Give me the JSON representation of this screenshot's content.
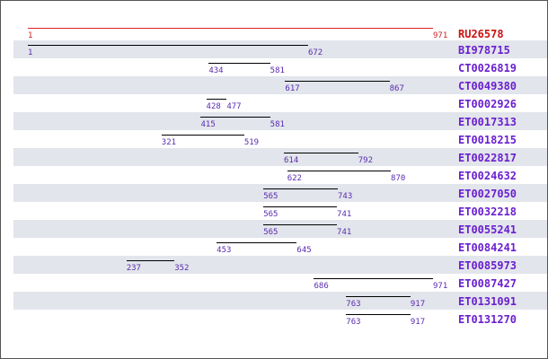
{
  "reference": {
    "id": "RU26578",
    "start": 1,
    "end": 971
  },
  "colors": {
    "reference": "#cc1111",
    "label": "#6a1fd0",
    "number": "#5a2bb0",
    "row_shade": "#e2e5eb",
    "bar": "#000000"
  },
  "alignments": [
    {
      "id": "BI978715",
      "start": 1,
      "end": 672
    },
    {
      "id": "CT0026819",
      "start": 434,
      "end": 581
    },
    {
      "id": "CT0049380",
      "start": 617,
      "end": 867
    },
    {
      "id": "ET0002926",
      "start": 428,
      "end": 477
    },
    {
      "id": "ET0017313",
      "start": 415,
      "end": 581
    },
    {
      "id": "ET0018215",
      "start": 321,
      "end": 519
    },
    {
      "id": "ET0022817",
      "start": 614,
      "end": 792
    },
    {
      "id": "ET0024632",
      "start": 622,
      "end": 870
    },
    {
      "id": "ET0027050",
      "start": 565,
      "end": 743
    },
    {
      "id": "ET0032218",
      "start": 565,
      "end": 741
    },
    {
      "id": "ET0055241",
      "start": 565,
      "end": 741
    },
    {
      "id": "ET0084241",
      "start": 453,
      "end": 645
    },
    {
      "id": "ET0085973",
      "start": 237,
      "end": 352
    },
    {
      "id": "ET0087427",
      "start": 686,
      "end": 971
    },
    {
      "id": "ET0131091",
      "start": 763,
      "end": 917
    },
    {
      "id": "ET0131270",
      "start": 763,
      "end": 917
    }
  ]
}
